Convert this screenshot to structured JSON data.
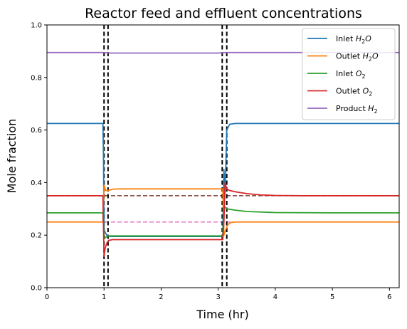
{
  "chart_data": {
    "type": "line",
    "title": "Reactor feed and effluent concentrations",
    "xlabel": "Time (hr)",
    "ylabel": "Mole fraction",
    "xlim": [
      0,
      6.17
    ],
    "ylim": [
      0.0,
      1.0
    ],
    "xticks": [
      "0",
      "1",
      "2",
      "3",
      "4",
      "5",
      "6"
    ],
    "yticks": [
      "0.0",
      "0.2",
      "0.4",
      "0.6",
      "0.8",
      "1.0"
    ],
    "grid": false,
    "legend_position": "top-right",
    "series": [
      {
        "name": "Inlet H2O",
        "legend_base": "Inlet ",
        "legend_sym": "H",
        "legend_sub": "2",
        "legend_tail": "O",
        "color": "#1f77b4",
        "x": [
          0,
          0.98,
          0.99,
          1.0,
          1.02,
          1.05,
          1.1,
          1.2,
          1.5,
          2.0,
          2.5,
          3.0,
          3.08,
          3.1,
          3.12,
          3.15,
          3.2,
          3.3,
          3.5,
          4.0,
          5.0,
          6.17
        ],
        "y": [
          0.625,
          0.625,
          0.5,
          0.22,
          0.21,
          0.2,
          0.195,
          0.195,
          0.195,
          0.195,
          0.195,
          0.195,
          0.195,
          0.45,
          0.36,
          0.6,
          0.622,
          0.625,
          0.625,
          0.625,
          0.625,
          0.625
        ]
      },
      {
        "name": "Outlet H2O",
        "legend_base": "Outlet ",
        "legend_sym": "H",
        "legend_sub": "2",
        "legend_tail": "O",
        "color": "#ff7f0e",
        "x": [
          0,
          0.98,
          1.0,
          1.03,
          1.08,
          1.15,
          1.3,
          1.5,
          2.0,
          2.5,
          3.0,
          3.08,
          3.1,
          3.13,
          3.17,
          3.22,
          3.3,
          3.5,
          4.0,
          5.0,
          6.17
        ],
        "y": [
          0.25,
          0.25,
          0.39,
          0.37,
          0.37,
          0.375,
          0.376,
          0.376,
          0.376,
          0.376,
          0.376,
          0.376,
          0.2,
          0.22,
          0.24,
          0.248,
          0.25,
          0.25,
          0.25,
          0.25,
          0.25
        ]
      },
      {
        "name": "Inlet O2",
        "legend_base": "Inlet ",
        "legend_sym": "O",
        "legend_sub": "2",
        "legend_tail": "",
        "color": "#2ca02c",
        "x": [
          0,
          0.98,
          1.0,
          1.02,
          1.05,
          1.1,
          1.2,
          1.5,
          2.0,
          2.5,
          3.0,
          3.08,
          3.1,
          3.15,
          3.3,
          3.5,
          4.0,
          5.0,
          6.17
        ],
        "y": [
          0.285,
          0.285,
          0.2,
          0.19,
          0.195,
          0.197,
          0.197,
          0.197,
          0.197,
          0.197,
          0.197,
          0.197,
          0.31,
          0.3,
          0.295,
          0.29,
          0.286,
          0.285,
          0.285
        ]
      },
      {
        "name": "Outlet O2",
        "legend_base": "Outlet ",
        "legend_sym": "O",
        "legend_sub": "2",
        "legend_tail": "",
        "color": "#d62728",
        "x": [
          0,
          0.98,
          1.0,
          1.02,
          1.05,
          1.08,
          1.15,
          1.3,
          1.5,
          2.0,
          2.5,
          3.0,
          3.08,
          3.1,
          3.12,
          3.15,
          3.2,
          3.3,
          3.5,
          3.75,
          4.0,
          4.5,
          5.0,
          6.17
        ],
        "y": [
          0.35,
          0.35,
          0.12,
          0.15,
          0.17,
          0.18,
          0.183,
          0.183,
          0.183,
          0.183,
          0.183,
          0.183,
          0.183,
          0.25,
          0.4,
          0.375,
          0.37,
          0.365,
          0.358,
          0.353,
          0.351,
          0.35,
          0.35,
          0.35
        ]
      },
      {
        "name": "Product H2",
        "legend_base": "Product ",
        "legend_sym": "H",
        "legend_sub": "2",
        "legend_tail": "",
        "color": "#9467bd",
        "x": [
          0,
          1.0,
          1.1,
          3.0,
          3.1,
          3.2,
          6.17
        ],
        "y": [
          0.895,
          0.895,
          0.893,
          0.893,
          0.895,
          0.895,
          0.895
        ]
      }
    ],
    "reference_lines": [
      {
        "orientation": "horizontal",
        "value": 0.35,
        "color": "#8c564b",
        "style": "dashed"
      },
      {
        "orientation": "horizontal",
        "value": 0.25,
        "color": "#e377c2",
        "style": "dashed"
      },
      {
        "orientation": "vertical",
        "value": 1.0,
        "color": "#000000",
        "style": "dashed"
      },
      {
        "orientation": "vertical",
        "value": 1.07,
        "color": "#000000",
        "style": "dashed"
      },
      {
        "orientation": "vertical",
        "value": 3.07,
        "color": "#000000",
        "style": "dashed"
      },
      {
        "orientation": "vertical",
        "value": 3.15,
        "color": "#000000",
        "style": "dashed"
      }
    ]
  }
}
